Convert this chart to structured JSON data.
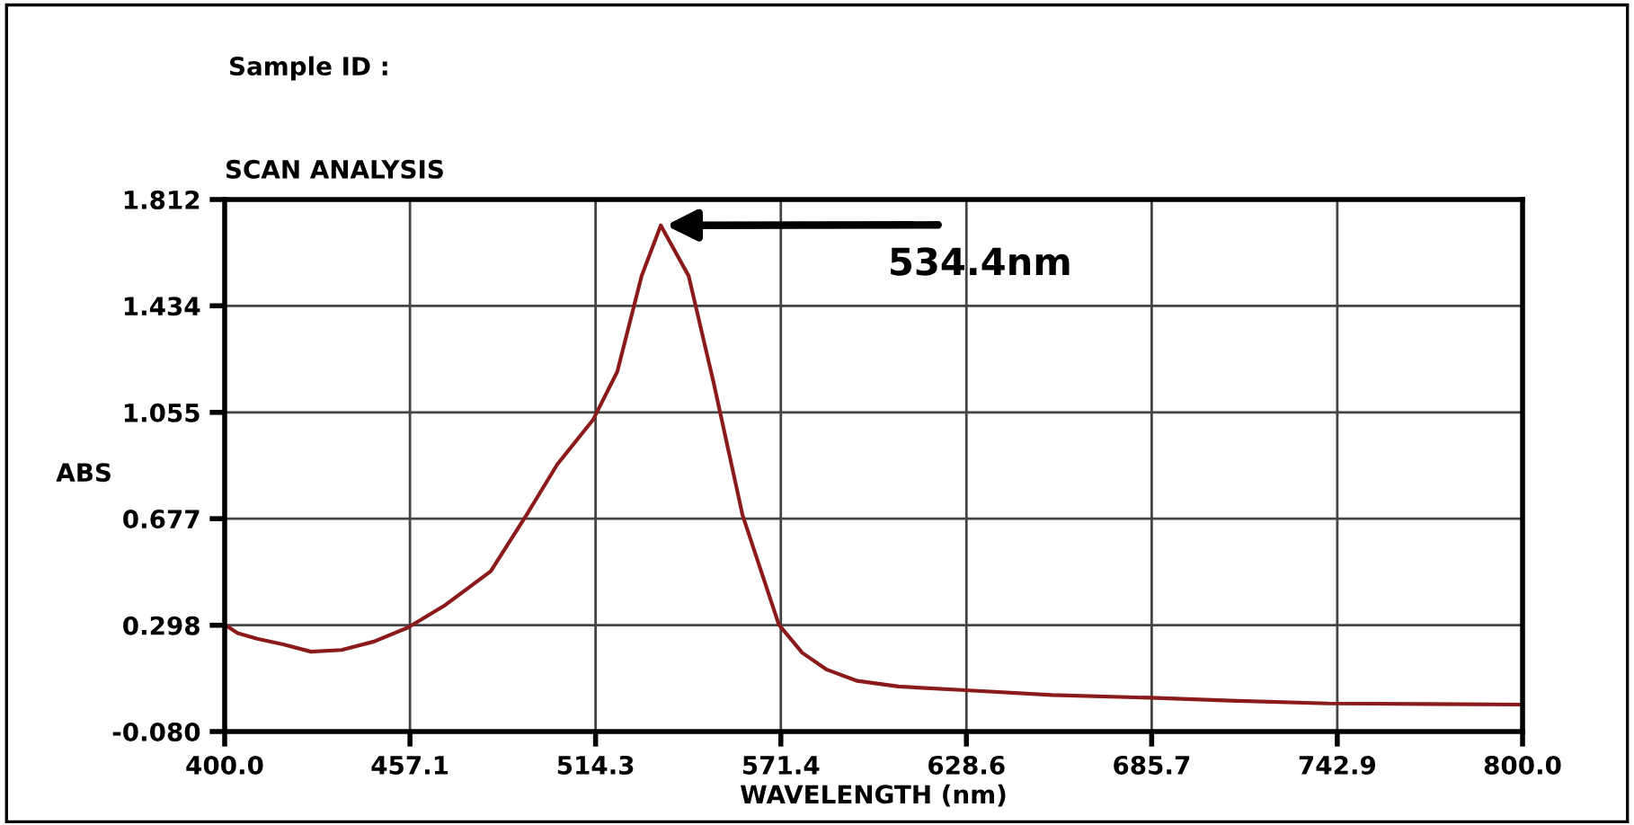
{
  "chart_data": {
    "type": "line",
    "title": "SCAN ANALYSIS",
    "xlabel": "WAVELENGTH (nm)",
    "ylabel": "ABS",
    "annotations": [
      "Sample ID :",
      {
        "text": "534.4nm",
        "x": 534.4,
        "y": 1.72
      }
    ],
    "x": [
      400,
      404,
      410,
      418,
      426.6,
      436,
      446,
      456.5,
      468,
      482,
      493,
      502.5,
      513.6,
      521,
      528.5,
      534.4,
      543,
      550.7,
      559.6,
      570.8,
      578,
      585.6,
      595,
      607.7,
      628.3,
      655,
      685.4,
      710,
      740,
      770,
      800
    ],
    "series": [
      {
        "color": "#8b1a1a",
        "values": [
          0.3,
          0.27,
          0.25,
          0.23,
          0.204,
          0.21,
          0.24,
          0.29,
          0.37,
          0.49,
          0.69,
          0.87,
          1.03,
          1.2,
          1.54,
          1.72,
          1.54,
          1.16,
          0.69,
          0.3,
          0.2,
          0.14,
          0.1,
          0.08,
          0.067,
          0.05,
          0.04,
          0.03,
          0.02,
          0.018,
          0.016
        ]
      }
    ],
    "xlim": [
      400,
      800
    ],
    "ylim": [
      -0.08,
      1.812
    ],
    "xticks": [
      {
        "value": 400,
        "label": "400.0"
      },
      457.1,
      514.3,
      571.4,
      628.6,
      685.7,
      742.9,
      {
        "value": 800,
        "label": "800.0"
      }
    ],
    "yticks": [
      {
        "value": -0.08,
        "label": "-0.080"
      },
      0.298,
      0.677,
      1.055,
      1.434,
      1.812
    ],
    "grid": true,
    "legend": false,
    "marker": "none",
    "line_style": "solid"
  }
}
